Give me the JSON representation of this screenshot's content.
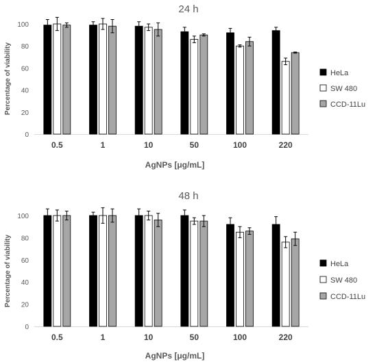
{
  "chart_data": [
    {
      "type": "bar",
      "title": "24 h",
      "xlabel": "AgNPs [μg/mL]",
      "ylabel": "Percentage of viability",
      "categories": [
        "0.5",
        "1",
        "10",
        "50",
        "100",
        "220"
      ],
      "ylim": [
        0,
        100
      ],
      "yticks": [
        "0",
        "20",
        "40",
        "60",
        "80",
        "100"
      ],
      "series": [
        {
          "name": "HeLa",
          "color": "#000000",
          "values": [
            99,
            99,
            98,
            93,
            92,
            94
          ],
          "errors": [
            5,
            3,
            4,
            4,
            4,
            3
          ]
        },
        {
          "name": "SW 480",
          "color": "#ffffff",
          "values": [
            100,
            100,
            97,
            86,
            80,
            66
          ],
          "errors": [
            6,
            5,
            3,
            3,
            1,
            3
          ]
        },
        {
          "name": "CCD-11Lu",
          "color": "#a6a6a6",
          "values": [
            99,
            98,
            95,
            90,
            84,
            74
          ],
          "errors": [
            2,
            6,
            6,
            1,
            4,
            0.5
          ]
        }
      ],
      "grid": false,
      "legend_position": "right"
    },
    {
      "type": "bar",
      "title": "48 h",
      "xlabel": "AgNPs [μg/mL]",
      "ylabel": "Percentage of viability",
      "categories": [
        "0.5",
        "1",
        "10",
        "50",
        "100",
        "220"
      ],
      "ylim": [
        0,
        100
      ],
      "yticks": [
        "0",
        "20",
        "40",
        "60",
        "80",
        "100"
      ],
      "series": [
        {
          "name": "HeLa",
          "color": "#000000",
          "values": [
            100,
            100,
            100,
            100,
            92,
            92
          ],
          "errors": [
            6,
            3,
            6,
            5,
            6,
            7
          ]
        },
        {
          "name": "SW 480",
          "color": "#ffffff",
          "values": [
            100,
            100,
            100,
            95,
            85,
            76
          ],
          "errors": [
            5,
            7,
            4,
            3,
            5,
            5
          ]
        },
        {
          "name": "CCD-11Lu",
          "color": "#a6a6a6",
          "values": [
            100,
            100,
            96,
            95,
            86,
            79
          ],
          "errors": [
            4,
            6,
            6,
            5,
            3,
            6
          ]
        }
      ],
      "grid": false,
      "legend_position": "right"
    }
  ]
}
